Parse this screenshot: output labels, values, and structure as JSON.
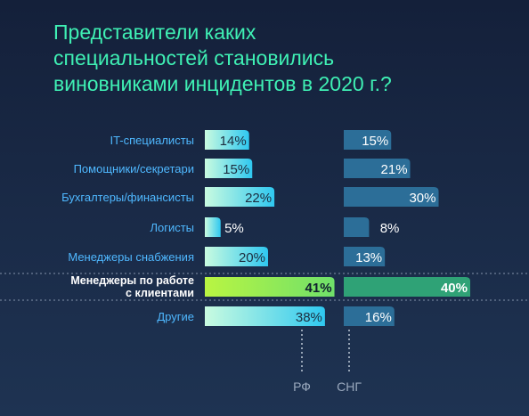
{
  "title_lines": [
    "Представители каких",
    "специальностей становились",
    "виновниками инцидентов в 2020 г.?"
  ],
  "colors": {
    "title": "#3ff0b4",
    "category_label": "#4fb8ff",
    "highlight_label": "#ffffff",
    "rf_bar_start": "#c9fbe0",
    "rf_bar_end": "#2fc8f0",
    "cis_bar": "#2c6e98",
    "highlight_rf_start": "#b9f542",
    "highlight_rf_end": "#6fe06a",
    "highlight_cis": "#2fa276"
  },
  "chart_data": {
    "type": "bar",
    "title": "Представители каких специальностей становились виновниками инцидентов в 2020 г.?",
    "categories": [
      "IT-специалисты",
      "Помощники/секретари",
      "Бухгалтеры/финансисты",
      "Логисты",
      "Менеджеры снабжения",
      "Менеджеры по работе с клиентами",
      "Другие"
    ],
    "category_lines": [
      [
        "IT-специалисты"
      ],
      [
        "Помощники/секретари"
      ],
      [
        "Бухгалтеры/финансисты"
      ],
      [
        "Логисты"
      ],
      [
        "Менеджеры снабжения"
      ],
      [
        "Менеджеры по работе",
        "с клиентами"
      ],
      [
        "Другие"
      ]
    ],
    "highlight_index": 5,
    "series": [
      {
        "name": "РФ",
        "values": [
          14,
          15,
          22,
          5,
          20,
          41,
          38
        ],
        "labels": [
          "14%",
          "15%",
          "22%",
          "5%",
          "20%",
          "41%",
          "38%"
        ]
      },
      {
        "name": "СНГ",
        "values": [
          15,
          21,
          30,
          8,
          13,
          40,
          16
        ],
        "labels": [
          "15%",
          "21%",
          "30%",
          "8%",
          "13%",
          "40%",
          "16%"
        ]
      }
    ],
    "unit": "%",
    "legend": "bottom"
  }
}
